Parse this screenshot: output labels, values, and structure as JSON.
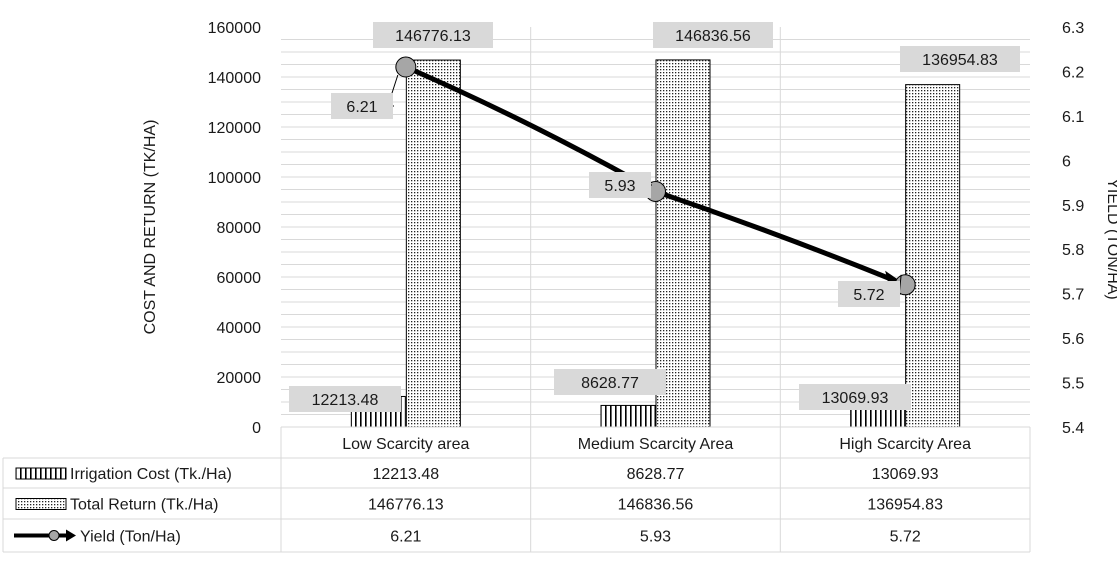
{
  "chart_data": {
    "type": "bar",
    "categories": [
      "Low Scarcity area",
      "Medium Scarcity Area",
      "High Scarcity Area"
    ],
    "series": [
      {
        "name": "Irrigation Cost (Tk./Ha)",
        "type": "bar",
        "axis": "left",
        "pattern": "vertical-lines",
        "values": [
          12213.48,
          8628.77,
          13069.93
        ]
      },
      {
        "name": "Total Return (Tk./Ha)",
        "type": "bar",
        "axis": "left",
        "pattern": "dots",
        "values": [
          146776.13,
          146836.56,
          136954.83
        ]
      },
      {
        "name": "Yield (Ton/Ha)",
        "type": "line",
        "axis": "right",
        "marker": "circle",
        "values": [
          6.21,
          5.93,
          5.72
        ]
      }
    ],
    "ylabel": "COST AND RETURN (TK/HA)",
    "ylabel_right": "YIELD (TON/HA)",
    "ylim": [
      0,
      160000
    ],
    "yticks": [
      0,
      20000,
      40000,
      60000,
      80000,
      100000,
      120000,
      140000,
      160000
    ],
    "ylim_right": [
      5.4,
      6.3
    ],
    "yticks_right": [
      "5.4",
      "5.5",
      "5.6",
      "5.7",
      "5.8",
      "5.9",
      "6",
      "6.1",
      "6.2",
      "6.3"
    ],
    "grid": true,
    "data_table": true,
    "colors": {
      "line": "#000000",
      "marker": "#a6a6a6",
      "label_box": "#d9d9d9",
      "grid": "#d9d9d9"
    }
  }
}
